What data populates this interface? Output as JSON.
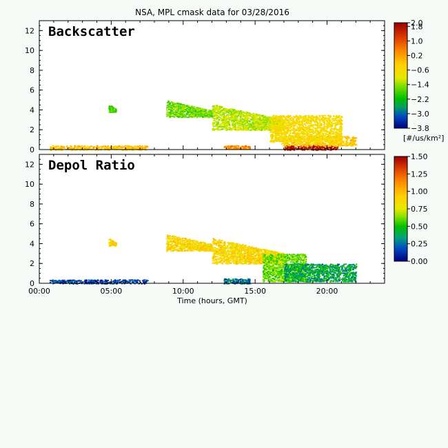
{
  "chart_data": [
    {
      "type": "heatmap",
      "title": "NSA, MPL cmask data for 03/28/2016",
      "panel_label": "Backscatter",
      "xlabel": "Time (hours, GMT)",
      "xlim": [
        0,
        24
      ],
      "x_tick_values": [
        0,
        5,
        10,
        15,
        20
      ],
      "x_tick_labels": [
        "00:00",
        "05:00",
        "10:00",
        "15:00",
        "20:00"
      ],
      "ylim": [
        0,
        13
      ],
      "y_tick_values": [
        0,
        2,
        4,
        6,
        8,
        10,
        12
      ],
      "y_tick_labels": [
        "0",
        "2",
        "4",
        "6",
        "8",
        "10",
        "12"
      ],
      "colorbar": {
        "range": [
          -3.8,
          2.0
        ],
        "tick_values": [
          2.0,
          1.8,
          1.0,
          0.2,
          -0.6,
          -1.4,
          -2.2,
          -3.0,
          -3.8
        ],
        "tick_labels": [
          "2.0",
          "1.8",
          "1.0",
          "0.2",
          "−0.6",
          "−1.4",
          "−2.2",
          "−3.0",
          "−3.8"
        ],
        "unit_label": "[#/us/km²]"
      },
      "features": [
        {
          "t0": 0.7,
          "t1": 7.5,
          "h0": 0.0,
          "h1": 0.45,
          "level": 0.62
        },
        {
          "t0": 12.8,
          "t1": 14.6,
          "h0": 0.1,
          "h1": 0.45,
          "level": 0.72
        },
        {
          "t0": 17.0,
          "t1": 20.7,
          "h0": 0.0,
          "h1": 0.5,
          "level": 0.95
        },
        {
          "t0": 16.8,
          "t1": 22.0,
          "h0": 0.4,
          "h1": 1.4,
          "level": 0.6
        },
        {
          "t0": 4.8,
          "t1": 5.3,
          "h0": 3.8,
          "h1": 4.6,
          "level": 0.35
        },
        {
          "t0": 8.8,
          "t1": 12.0,
          "h0": 3.3,
          "h1": 5.0,
          "level": 0.38
        },
        {
          "t0": 12.0,
          "t1": 17.0,
          "h0": 2.0,
          "h1": 4.6,
          "level": 0.45
        },
        {
          "t0": 16.0,
          "t1": 21.0,
          "h0": 0.8,
          "h1": 3.5,
          "level": 0.55
        }
      ]
    },
    {
      "type": "heatmap",
      "panel_label": "Depol Ratio",
      "xlabel": "Time (hours, GMT)",
      "xlim": [
        0,
        24
      ],
      "x_tick_values": [
        0,
        5,
        10,
        15,
        20
      ],
      "x_tick_labels": [
        "00:00",
        "05:00",
        "10:00",
        "15:00",
        "20:00"
      ],
      "ylim": [
        0,
        13
      ],
      "y_tick_values": [
        0,
        2,
        4,
        6,
        8,
        10,
        12
      ],
      "y_tick_labels": [
        "0",
        "2",
        "4",
        "6",
        "8",
        "10",
        "12"
      ],
      "colorbar": {
        "range": [
          0.0,
          1.5
        ],
        "tick_values": [
          1.5,
          1.25,
          1.0,
          0.75,
          0.5,
          0.25,
          0.0
        ],
        "tick_labels": [
          "1.50",
          "1.25",
          "1.00",
          "0.75",
          "0.50",
          "0.25",
          "0.00"
        ]
      },
      "features": [
        {
          "t0": 0.7,
          "t1": 7.5,
          "h0": 0.0,
          "h1": 0.4,
          "value": 0.12
        },
        {
          "t0": 12.8,
          "t1": 14.6,
          "h0": 0.0,
          "h1": 0.5,
          "value": 0.22
        },
        {
          "t0": 4.8,
          "t1": 5.3,
          "h0": 3.8,
          "h1": 4.6,
          "value": 0.85
        },
        {
          "t0": 8.8,
          "t1": 12.0,
          "h0": 3.3,
          "h1": 5.0,
          "value": 0.85
        },
        {
          "t0": 12.0,
          "t1": 17.0,
          "h0": 2.0,
          "h1": 4.6,
          "value": 0.85
        },
        {
          "t0": 15.5,
          "t1": 18.5,
          "h0": 0.2,
          "h1": 3.0,
          "value": 0.55
        },
        {
          "t0": 17.0,
          "t1": 22.0,
          "h0": 0.2,
          "h1": 2.0,
          "value": 0.35
        }
      ]
    }
  ]
}
